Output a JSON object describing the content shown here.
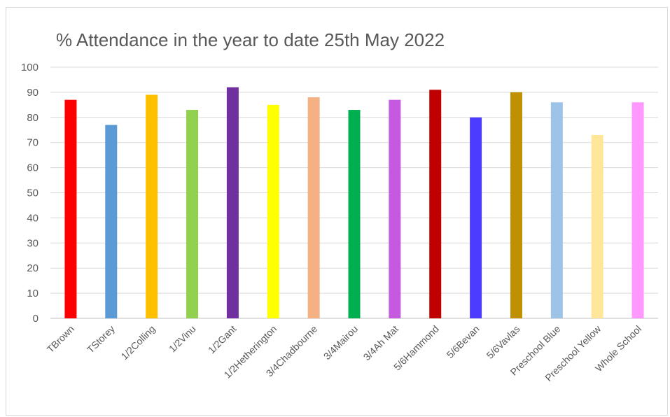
{
  "chart_data": {
    "type": "bar",
    "title": "% Attendance in the year to date 25th May 2022",
    "xlabel": "",
    "ylabel": "",
    "ylim": [
      0,
      100
    ],
    "yticks": [
      "0",
      "10",
      "20",
      "30",
      "40",
      "50",
      "60",
      "70",
      "80",
      "90",
      "100"
    ],
    "grid": true,
    "legend": "none",
    "categories": [
      "TBrown",
      "TStorey",
      "1/2Colling",
      "1/2Vinu",
      "1/2Gant",
      "1/2Hetherington",
      "3/4Chadbourne",
      "3/4Mairou",
      "3/4Ah Mat",
      "5/6Hammond",
      "5/6Bevan",
      "5/6Vavlas",
      "Preschool Blue",
      "Preschool Yellow",
      "Whole School"
    ],
    "values": [
      87,
      77,
      89,
      83,
      92,
      85,
      88,
      83,
      87,
      91,
      80,
      90,
      86,
      73,
      86
    ],
    "colors": [
      "#ff0000",
      "#5b9bd5",
      "#ffc000",
      "#92d050",
      "#7030a0",
      "#ffff00",
      "#f4b183",
      "#00b050",
      "#c55ae0",
      "#c00000",
      "#4b3cff",
      "#bf9000",
      "#9dc3e6",
      "#ffe699",
      "#ff99ff"
    ]
  }
}
